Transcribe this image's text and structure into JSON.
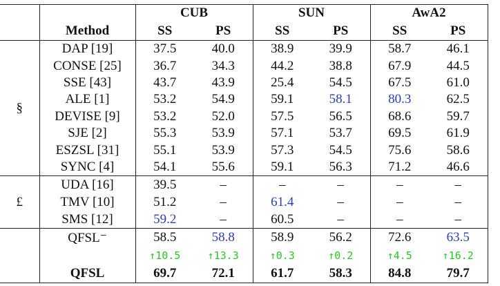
{
  "header": {
    "method": "Method",
    "datasets": [
      "CUB",
      "SUN",
      "AwA2"
    ],
    "splits": [
      "SS",
      "PS"
    ]
  },
  "groups": [
    {
      "symbol": "§",
      "rows": [
        {
          "method": "DAP [19]",
          "values": [
            "37.5",
            "40.0",
            "38.9",
            "39.9",
            "58.7",
            "46.1"
          ]
        },
        {
          "method": "CONSE [25]",
          "values": [
            "36.7",
            "34.3",
            "44.2",
            "38.8",
            "67.9",
            "44.5"
          ]
        },
        {
          "method": "SSE [43]",
          "values": [
            "43.7",
            "43.9",
            "25.4",
            "54.5",
            "67.5",
            "61.0"
          ]
        },
        {
          "method": "ALE [1]",
          "values": [
            "53.2",
            "54.9",
            "59.1",
            "58.1",
            "80.3",
            "62.5"
          ],
          "highlight": [
            3,
            4
          ]
        },
        {
          "method": "DEVISE [9]",
          "values": [
            "53.2",
            "52.0",
            "57.5",
            "56.5",
            "68.6",
            "59.7"
          ]
        },
        {
          "method": "SJE [2]",
          "values": [
            "55.3",
            "53.9",
            "57.1",
            "53.7",
            "69.5",
            "61.9"
          ]
        },
        {
          "method": "ESZSL [31]",
          "values": [
            "55.1",
            "53.9",
            "57.3",
            "54.5",
            "75.6",
            "58.6"
          ]
        },
        {
          "method": "SYNC [4]",
          "values": [
            "54.1",
            "55.6",
            "59.1",
            "56.3",
            "71.2",
            "46.6"
          ]
        }
      ]
    },
    {
      "symbol": "£",
      "rows": [
        {
          "method": "UDA [16]",
          "values": [
            "39.5",
            "–",
            "–",
            "–",
            "–",
            "–"
          ]
        },
        {
          "method": "TMV [10]",
          "values": [
            "51.2",
            "–",
            "61.4",
            "–",
            "–",
            "–"
          ],
          "highlight": [
            2
          ]
        },
        {
          "method": "SMS [12]",
          "values": [
            "59.2",
            "–",
            "60.5",
            "–",
            "–",
            "–"
          ],
          "highlight": [
            0
          ]
        }
      ]
    },
    {
      "rows": [
        {
          "method": "QFSL⁻",
          "values": [
            "58.5",
            "58.8",
            "58.9",
            "56.2",
            "72.6",
            "63.5"
          ],
          "highlight": [
            1,
            5
          ]
        },
        {
          "gains": [
            "↑10.5",
            "↑13.3",
            "↑0.3",
            "↑0.2",
            "↑4.5",
            "↑16.2"
          ]
        },
        {
          "method": "QFSL",
          "values": [
            "69.7",
            "72.1",
            "61.7",
            "58.3",
            "84.8",
            "79.7"
          ],
          "bold": true
        }
      ]
    }
  ]
}
